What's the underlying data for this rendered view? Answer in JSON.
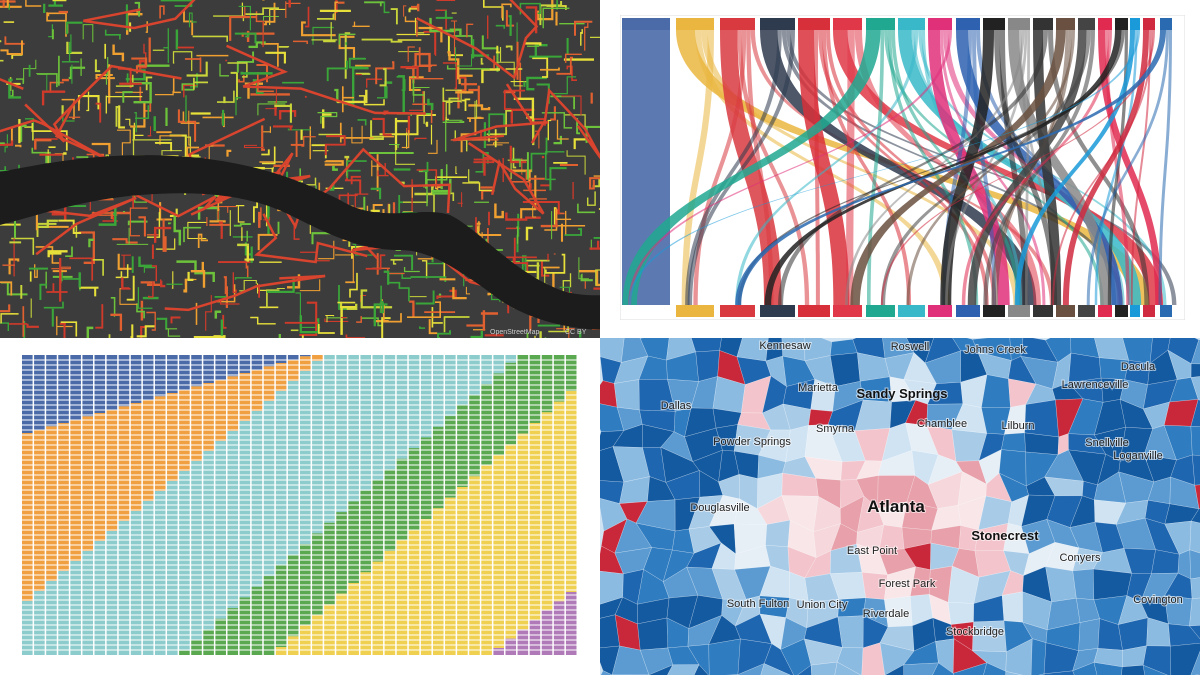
{
  "street_map": {
    "attribution": [
      "OpenStreetMap",
      "CC BY"
    ]
  },
  "atlanta_map": {
    "labels": [
      "Kennesaw",
      "Roswell",
      "Johns Creek",
      "Dacula",
      "Marietta",
      "Sandy Springs",
      "Lawrenceville",
      "Dallas",
      "Chamblee",
      "Lilburn",
      "Smyrna",
      "Powder Springs",
      "Snellville",
      "Loganville",
      "Atlanta",
      "Douglasville",
      "Stonecrest",
      "East Point",
      "Conyers",
      "Forest Park",
      "Covington",
      "South Fulton",
      "Union City",
      "Riverdale",
      "Stockbridge"
    ]
  }
}
